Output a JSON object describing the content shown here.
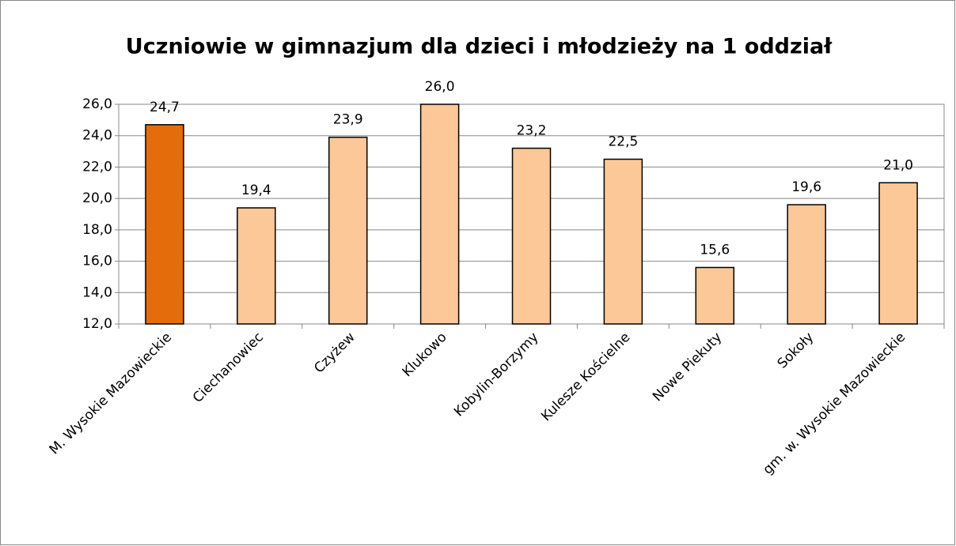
{
  "chart_data": {
    "type": "bar",
    "title": "Uczniowie w gimnazjum dla dzieci i młodzieży na 1 oddział",
    "categories": [
      "M. Wysokie Mazowieckie",
      "Ciechanowiec",
      "Czyżew",
      "Klukowo",
      "Kobylin-Borzymy",
      "Kulesze Kościelne",
      "Nowe Piekuty",
      "Sokoły",
      "gm. w. Wysokie Mazowieckie"
    ],
    "values": [
      24.7,
      19.4,
      23.9,
      26.0,
      23.2,
      22.5,
      15.6,
      19.6,
      21.0
    ],
    "value_labels": [
      "24,7",
      "19,4",
      "23,9",
      "26,0",
      "23,2",
      "22,5",
      "15,6",
      "19,6",
      "21,0"
    ],
    "colors": [
      "#e46c0a",
      "#fcc898",
      "#fcc898",
      "#fcc898",
      "#fcc898",
      "#fcc898",
      "#fcc898",
      "#fcc898",
      "#fcc898"
    ],
    "ylim": [
      12,
      26
    ],
    "yticks": [
      {
        "value": 12,
        "label": "12,0"
      },
      {
        "value": 14,
        "label": "14,0"
      },
      {
        "value": 16,
        "label": "16,0"
      },
      {
        "value": 18,
        "label": "18,0"
      },
      {
        "value": 20,
        "label": "20,0"
      },
      {
        "value": 22,
        "label": "22,0"
      },
      {
        "value": 24,
        "label": "24,0"
      },
      {
        "value": 26,
        "label": "26,0"
      }
    ],
    "grid": true
  }
}
